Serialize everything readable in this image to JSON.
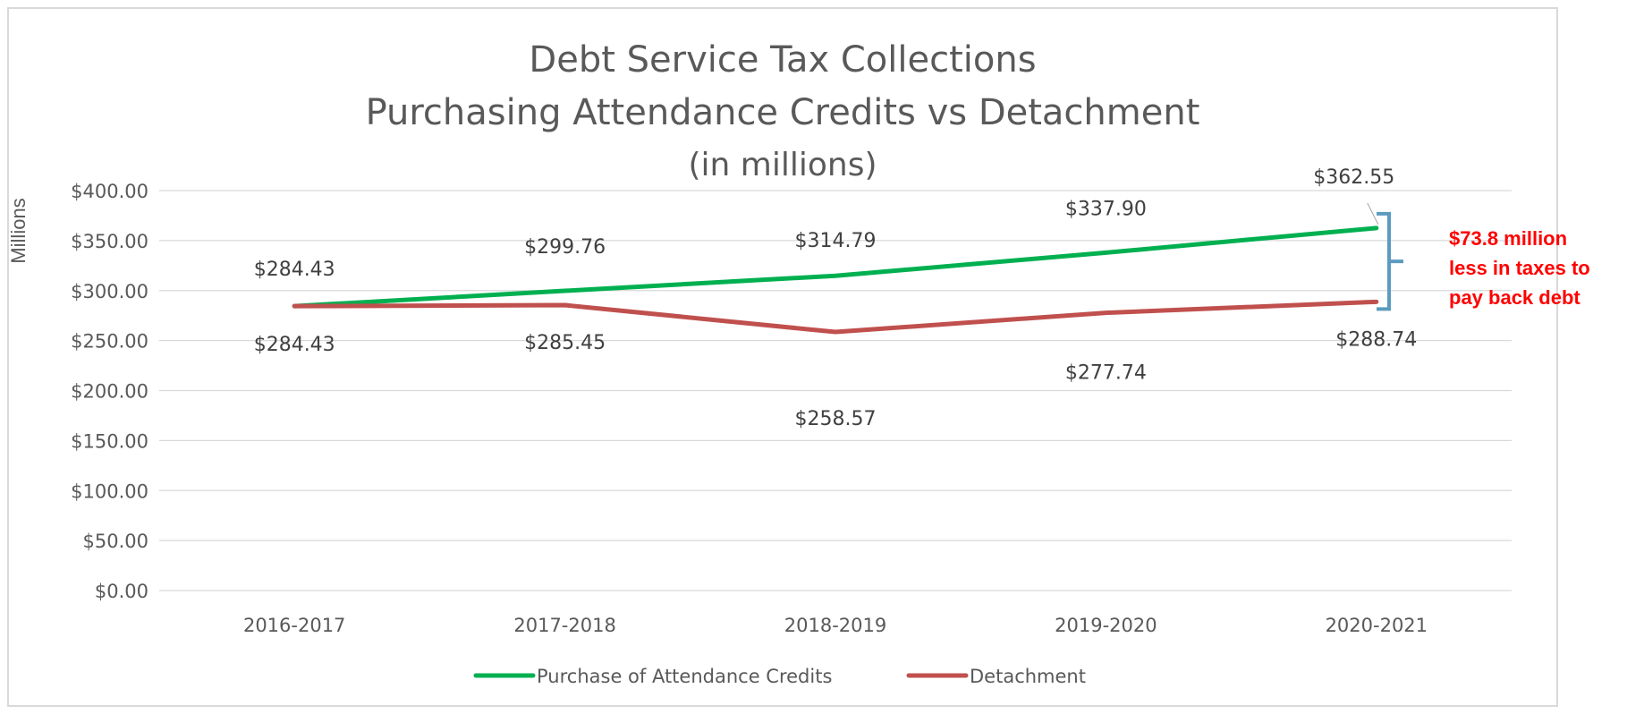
{
  "chart_data": {
    "type": "line",
    "title": "Debt Service Tax Collections",
    "subtitle": "Purchasing Attendance Credits vs Detachment",
    "subtitle2": "(in millions)",
    "ylabel": "Millions",
    "xlabel": "",
    "categories": [
      "2016-2017",
      "2017-2018",
      "2018-2019",
      "2019-2020",
      "2020-2021"
    ],
    "ylim": [
      0,
      400
    ],
    "yticks": [
      "$0.00",
      "$50.00",
      "$100.00",
      "$150.00",
      "$200.00",
      "$250.00",
      "$300.00",
      "$350.00",
      "$400.00"
    ],
    "grid": true,
    "legend_position": "bottom",
    "series": [
      {
        "name": "Purchase of Attendance Credits",
        "color": "#00b050",
        "values": [
          284.43,
          299.76,
          314.79,
          337.9,
          362.55
        ],
        "labels": [
          "$284.43",
          "$299.76",
          "$314.79",
          "$337.90",
          "$362.55"
        ]
      },
      {
        "name": "Detachment",
        "color": "#c0504d",
        "values": [
          284.43,
          285.45,
          258.57,
          277.74,
          288.74
        ],
        "labels": [
          "$284.43",
          "$285.45",
          "$258.57",
          "$277.74",
          "$288.74"
        ]
      }
    ],
    "annotation": {
      "lines": [
        "$73.8 million",
        "less in taxes to",
        "pay back debt"
      ],
      "color": "#ff0000",
      "bracket_color": "#5b9bbf"
    }
  }
}
